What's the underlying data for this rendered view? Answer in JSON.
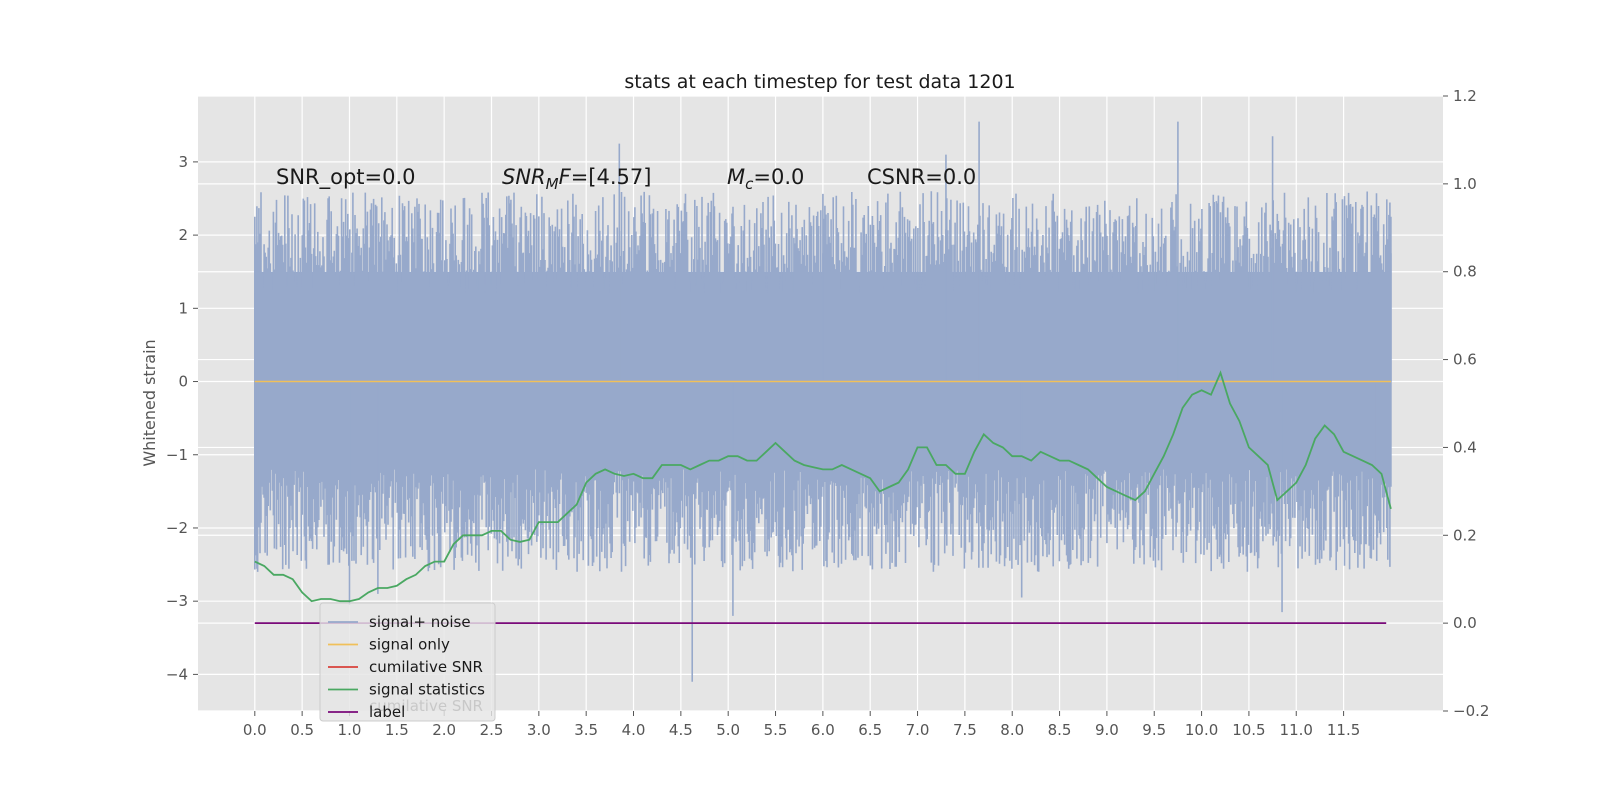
{
  "chart_data": {
    "type": "line",
    "title": "stats at each timestep for test data 1201",
    "xlabel": "",
    "ylabel": "Whitened strain",
    "xlim": [
      -0.6,
      12.55
    ],
    "ylim": [
      -4.5,
      3.9
    ],
    "y2lim": [
      -0.2,
      1.2
    ],
    "grid": true,
    "legend_position": "lower-left",
    "x_ticks": [
      "0.0",
      "0.5",
      "1.0",
      "1.5",
      "2.0",
      "2.5",
      "3.0",
      "3.5",
      "4.0",
      "4.5",
      "5.0",
      "5.5",
      "6.0",
      "6.5",
      "7.0",
      "7.5",
      "8.0",
      "8.5",
      "9.0",
      "9.5",
      "10.0",
      "10.5",
      "11.0",
      "11.5"
    ],
    "y_ticks": [
      "3",
      "2",
      "1",
      "0",
      "−1",
      "−2",
      "−3",
      "−4"
    ],
    "y2_ticks": [
      "1.2",
      "1.0",
      "0.8",
      "0.6",
      "0.4",
      "0.2",
      "0.0",
      "−0.2"
    ],
    "annotations": {
      "snr_opt": "SNR_opt=0.0",
      "snr_mf_base": "SNR",
      "snr_mf_sub": "M",
      "snr_mf_rest": "F=[4.57]",
      "mc_base": "M",
      "mc_sub": "c",
      "mc_rest": "=0.0",
      "csnr": "CSNR=0.0"
    },
    "series": [
      {
        "name": "signal+ noise",
        "color": "#97a9cb",
        "axis": "left",
        "x_range": [
          0.0,
          12.0
        ],
        "typical_range": [
          -2.0,
          2.0
        ],
        "extremes": [
          {
            "x": 0.0,
            "y": 2.25
          },
          {
            "x": 0.03,
            "y": -2.6
          },
          {
            "x": 1.0,
            "y": -3.05
          },
          {
            "x": 1.3,
            "y": -2.9
          },
          {
            "x": 3.85,
            "y": 3.25
          },
          {
            "x": 4.62,
            "y": -4.1
          },
          {
            "x": 5.05,
            "y": -3.2
          },
          {
            "x": 6.0,
            "y": 1.75
          },
          {
            "x": 7.3,
            "y": 3.1
          },
          {
            "x": 7.65,
            "y": 3.55
          },
          {
            "x": 8.1,
            "y": -2.95
          },
          {
            "x": 9.75,
            "y": 3.55
          },
          {
            "x": 10.75,
            "y": 3.35
          },
          {
            "x": 10.85,
            "y": -3.15
          },
          {
            "x": 11.85,
            "y": -2.45
          },
          {
            "x": 12.0,
            "y": 1.75
          }
        ]
      },
      {
        "name": "signal only",
        "color": "#f0c05a",
        "axis": "left",
        "x": [
          0.0,
          12.0
        ],
        "y": [
          0.0,
          0.0
        ]
      },
      {
        "name": "cumilative SNR",
        "color": "#d9413a",
        "axis": "right",
        "x": [],
        "y": []
      },
      {
        "name": "signal statistics",
        "color": "#4aa862",
        "axis": "right",
        "x": [
          0.0,
          0.1,
          0.2,
          0.3,
          0.4,
          0.5,
          0.6,
          0.7,
          0.8,
          0.9,
          1.0,
          1.1,
          1.2,
          1.3,
          1.4,
          1.5,
          1.6,
          1.7,
          1.8,
          1.9,
          2.0,
          2.1,
          2.2,
          2.3,
          2.4,
          2.5,
          2.6,
          2.7,
          2.8,
          2.9,
          3.0,
          3.1,
          3.2,
          3.3,
          3.4,
          3.5,
          3.6,
          3.7,
          3.8,
          3.9,
          4.0,
          4.1,
          4.2,
          4.3,
          4.4,
          4.5,
          4.6,
          4.7,
          4.8,
          4.9,
          5.0,
          5.1,
          5.2,
          5.3,
          5.4,
          5.5,
          5.6,
          5.7,
          5.8,
          5.9,
          6.0,
          6.1,
          6.2,
          6.3,
          6.4,
          6.5,
          6.6,
          6.7,
          6.8,
          6.9,
          7.0,
          7.1,
          7.2,
          7.3,
          7.4,
          7.5,
          7.6,
          7.7,
          7.8,
          7.9,
          8.0,
          8.1,
          8.2,
          8.3,
          8.4,
          8.5,
          8.6,
          8.7,
          8.8,
          8.9,
          9.0,
          9.1,
          9.2,
          9.3,
          9.4,
          9.5,
          9.6,
          9.7,
          9.8,
          9.9,
          10.0,
          10.1,
          10.2,
          10.3,
          10.4,
          10.5,
          10.6,
          10.7,
          10.8,
          10.9,
          11.0,
          11.1,
          11.2,
          11.3,
          11.4,
          11.5,
          11.6,
          11.7,
          11.8,
          11.9,
          12.0
        ],
        "y": [
          0.14,
          0.13,
          0.11,
          0.11,
          0.1,
          0.07,
          0.05,
          0.055,
          0.055,
          0.05,
          0.05,
          0.055,
          0.07,
          0.08,
          0.08,
          0.085,
          0.1,
          0.11,
          0.13,
          0.14,
          0.14,
          0.18,
          0.2,
          0.2,
          0.2,
          0.21,
          0.21,
          0.19,
          0.185,
          0.19,
          0.23,
          0.23,
          0.23,
          0.25,
          0.27,
          0.32,
          0.34,
          0.35,
          0.34,
          0.335,
          0.34,
          0.33,
          0.33,
          0.36,
          0.36,
          0.36,
          0.35,
          0.36,
          0.37,
          0.37,
          0.38,
          0.38,
          0.37,
          0.37,
          0.39,
          0.41,
          0.39,
          0.37,
          0.36,
          0.355,
          0.35,
          0.35,
          0.36,
          0.35,
          0.34,
          0.33,
          0.3,
          0.31,
          0.32,
          0.35,
          0.4,
          0.4,
          0.36,
          0.36,
          0.34,
          0.34,
          0.39,
          0.43,
          0.41,
          0.4,
          0.38,
          0.38,
          0.37,
          0.39,
          0.38,
          0.37,
          0.37,
          0.36,
          0.35,
          0.33,
          0.31,
          0.3,
          0.29,
          0.28,
          0.3,
          0.34,
          0.38,
          0.43,
          0.49,
          0.52,
          0.53,
          0.52,
          0.57,
          0.5,
          0.46,
          0.4,
          0.38,
          0.36,
          0.28,
          0.3,
          0.32,
          0.36,
          0.42,
          0.45,
          0.43,
          0.39,
          0.38,
          0.37,
          0.36,
          0.34,
          0.26
        ],
        "extremes_note": "peak near x=10.2 at 0.57"
      },
      {
        "name": "label",
        "color": "#7a0a7a",
        "axis": "right",
        "x": [
          0.0,
          11.95
        ],
        "y": [
          0.0,
          0.0
        ]
      }
    ],
    "legend_overlap_text": "cumilative SNR"
  }
}
